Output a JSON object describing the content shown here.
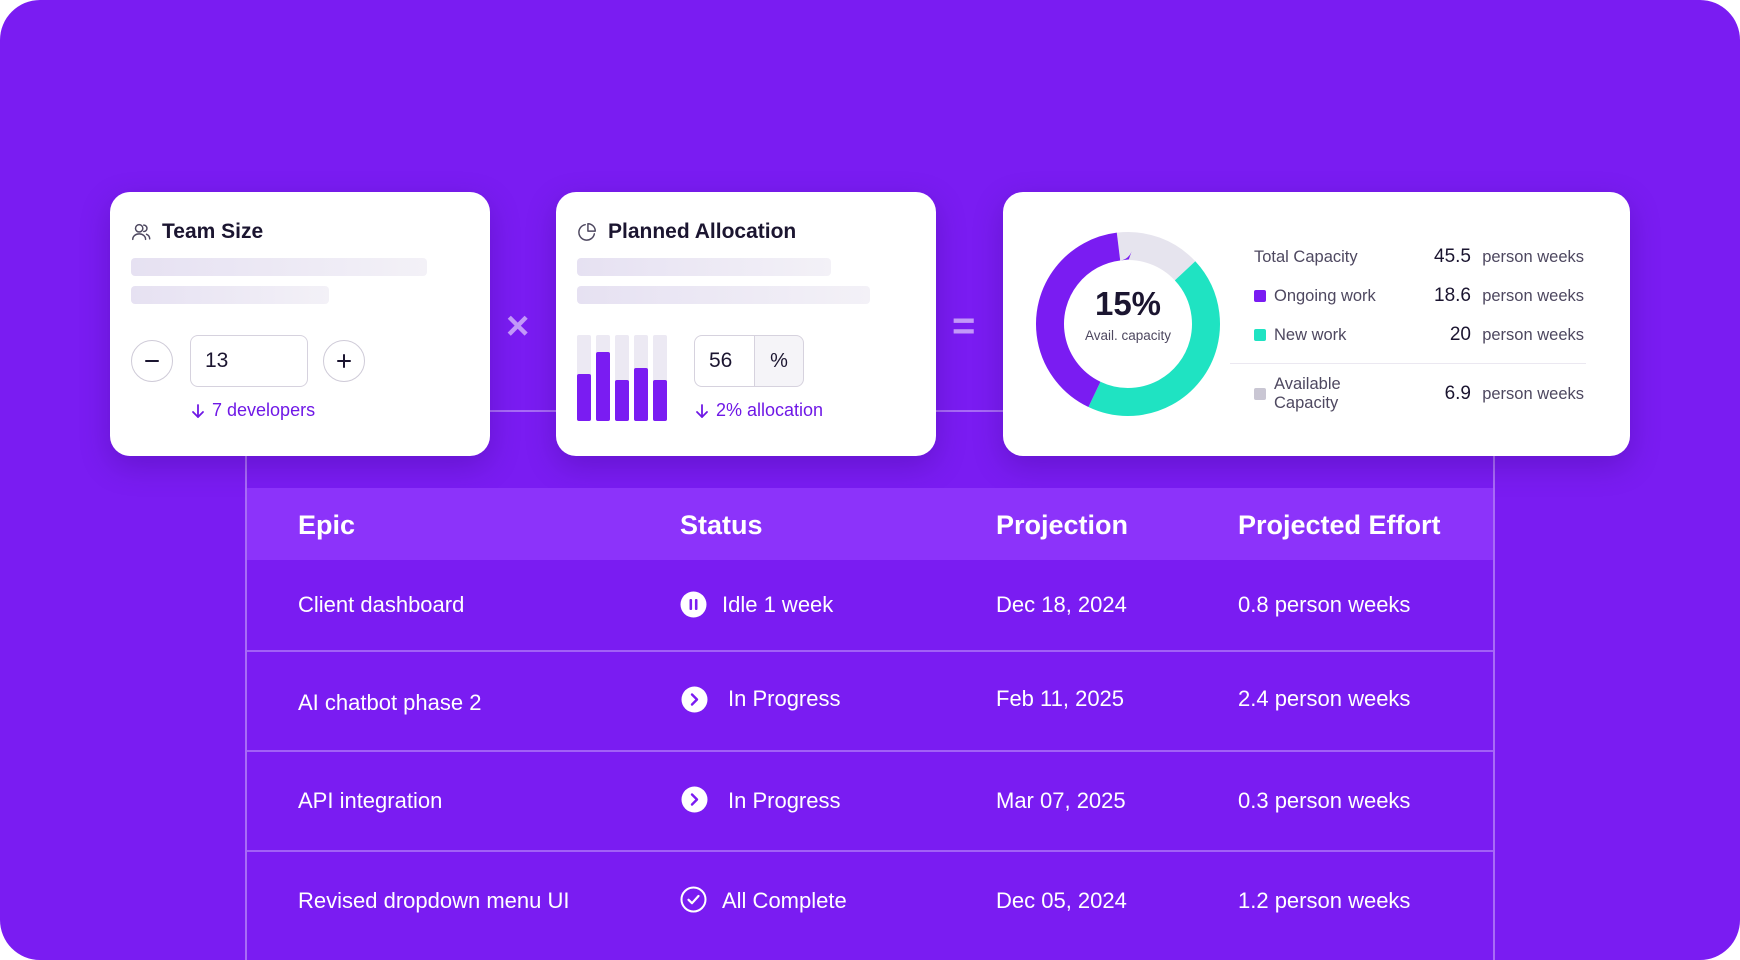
{
  "team_size": {
    "title": "Team Size",
    "title_icon": "users-icon",
    "value": "13",
    "decrement_icon": "minus-icon",
    "increment_icon": "plus-icon",
    "hint": "7 developers"
  },
  "operators": {
    "multiply": "×",
    "equals": "="
  },
  "planned_allocation": {
    "title": "Planned Allocation",
    "title_icon": "pie-chart-icon",
    "value": "56",
    "unit": "%",
    "hint": "2% allocation",
    "bar_levels": [
      0.55,
      0.8,
      0.48,
      0.62,
      0.48
    ]
  },
  "capacity": {
    "donut_percent": "15%",
    "donut_label": "Avail. capacity",
    "colors": {
      "ongoing": "#7a1cf2",
      "new": "#1fe3c2",
      "available": "#e6e4ee"
    },
    "fractions": {
      "new": 0.44,
      "ongoing": 0.41,
      "available": 0.15
    },
    "rows": [
      {
        "label": "Total Capacity",
        "value": "45.5",
        "unit": "person weeks"
      },
      {
        "label": "Ongoing work",
        "value": "18.6",
        "unit": "person weeks"
      },
      {
        "label": "New work",
        "value": "20",
        "unit": "person weeks"
      },
      {
        "label": "Available Capacity",
        "value": "6.9",
        "unit": "person weeks"
      }
    ]
  },
  "table": {
    "headers": {
      "epic": "Epic",
      "status": "Status",
      "projection": "Projection",
      "effort": "Projected Effort"
    },
    "rows": [
      {
        "epic": "Client dashboard",
        "status": "Idle 1 week",
        "status_icon": "pause-icon",
        "projection": "Dec 18, 2024",
        "effort": "0.8 person weeks"
      },
      {
        "epic": "AI chatbot phase 2",
        "status": "In Progress",
        "status_icon": "chevron-right-icon",
        "projection": "Feb 11, 2025",
        "effort": "2.4 person weeks"
      },
      {
        "epic": "API integration",
        "status": "In Progress",
        "status_icon": "chevron-right-icon",
        "projection": "Mar 07, 2025",
        "effort": "0.3 person weeks"
      },
      {
        "epic": "Revised dropdown menu UI",
        "status": "All Complete",
        "status_icon": "check-circle-icon",
        "projection": "Dec 05, 2024",
        "effort": "1.2 person weeks"
      }
    ]
  }
}
